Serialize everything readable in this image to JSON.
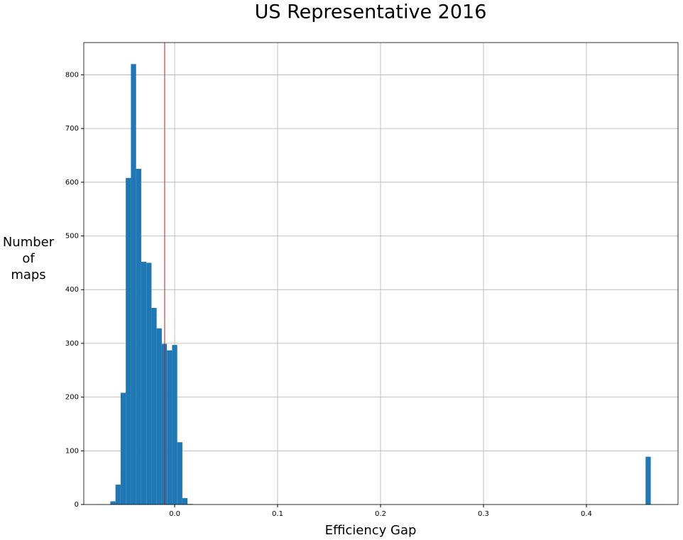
{
  "chart_data": {
    "type": "histogram",
    "title": "US Representative 2016",
    "xlabel": "Efficiency Gap",
    "ylabel": "Number\nof\nmaps",
    "bins": [
      -0.0625,
      -0.0575,
      -0.0525,
      -0.0475,
      -0.0425,
      -0.0375,
      -0.0325,
      -0.0275,
      -0.0225,
      -0.0175,
      -0.0125,
      -0.0075,
      -0.0025,
      0.0025,
      0.0075,
      0.0125,
      0.0175,
      0.0225,
      0.0275,
      0.0325,
      0.0375,
      0.0425,
      0.0475,
      0.0525,
      0.0575,
      0.0625,
      0.0675,
      0.0725,
      0.0775,
      0.0825,
      0.0875,
      0.0925,
      0.0975,
      0.1025,
      0.1075,
      0.1125,
      0.1175,
      0.1225,
      0.1275,
      0.1325,
      0.1375,
      0.1425,
      0.1475,
      0.1525,
      0.1575,
      0.1625,
      0.1675,
      0.1725,
      0.1775,
      0.1825,
      0.1875,
      0.1925,
      0.1975,
      0.2025,
      0.2075,
      0.2125,
      0.2175,
      0.2225,
      0.2275,
      0.2325,
      0.2375,
      0.2425,
      0.2475,
      0.2525,
      0.2575,
      0.2625,
      0.2675,
      0.2725,
      0.2775,
      0.2825,
      0.2875,
      0.2925,
      0.2975,
      0.3025,
      0.3075,
      0.3125,
      0.3175,
      0.3225,
      0.3275,
      0.3325,
      0.3375,
      0.3425,
      0.3475,
      0.3525,
      0.3575,
      0.3625,
      0.3675,
      0.3725,
      0.3775,
      0.3825,
      0.3875,
      0.3925,
      0.3975,
      0.4025,
      0.4075,
      0.4125,
      0.4175,
      0.4225,
      0.4275,
      0.4325,
      0.4375,
      0.4425,
      0.4475,
      0.4525,
      0.4575,
      0.4625
    ],
    "values": [
      6,
      37,
      208,
      608,
      820,
      625,
      452,
      450,
      366,
      328,
      299,
      287,
      297,
      116,
      12,
      1,
      0,
      0,
      0,
      0,
      0,
      0,
      0,
      0,
      0,
      0,
      0,
      0,
      0,
      0,
      0,
      0,
      0,
      0,
      0,
      0,
      0,
      0,
      0,
      0,
      0,
      0,
      0,
      0,
      0,
      0,
      0,
      0,
      0,
      0,
      0,
      0,
      0,
      0,
      0,
      0,
      0,
      0,
      0,
      0,
      0,
      0,
      0,
      0,
      0,
      0,
      0,
      0,
      0,
      0,
      0,
      0,
      0,
      0,
      0,
      0,
      0,
      0,
      0,
      0,
      0,
      0,
      0,
      0,
      0,
      0,
      0,
      0,
      0,
      0,
      0,
      0,
      0,
      0,
      0,
      0,
      0,
      0,
      0,
      0,
      0,
      0,
      0,
      0,
      89
    ],
    "color": "#1f77b4",
    "vline": -0.0097,
    "vline_color": "#b22222",
    "xlim": [
      -0.0883,
      0.489
    ],
    "ylim": [
      0,
      860
    ],
    "xticks": [
      {
        "value": 0,
        "label": "0.0"
      },
      0.1,
      0.2,
      0.3,
      0.4
    ],
    "yticks": [
      0,
      100,
      200,
      300,
      400,
      500,
      600,
      700,
      800
    ],
    "grid": true
  }
}
